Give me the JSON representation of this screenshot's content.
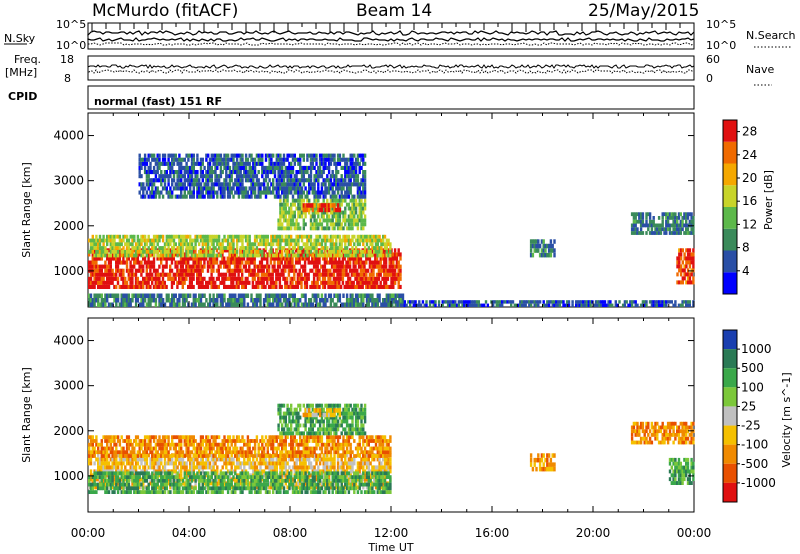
{
  "header": {
    "station": "McMurdo (fitACF)",
    "beam": "Beam 14",
    "date": "25/May/2015"
  },
  "top_panels": {
    "nsky_label": "N.Sky",
    "nsearch_label": "N.Search",
    "nsky_ticks": [
      "10^5",
      "10^0"
    ],
    "nsearch_ticks": [
      "10^5",
      "10^0"
    ],
    "freq_label": "Freq.",
    "freq_unit": "[MHz]",
    "freq_ticks": [
      "18",
      "8"
    ],
    "nave_label": "Nave",
    "nave_ticks": [
      "60",
      "0"
    ],
    "cpid_label": "CPID",
    "cpid_text": "normal (fast) 151 RF"
  },
  "chart_data": [
    {
      "type": "heatmap",
      "title": "",
      "xlabel": "Time UT",
      "ylabel": "Slant Range [km]",
      "x_tick_labels": [
        "00:00",
        "04:00",
        "08:00",
        "12:00",
        "16:00",
        "20:00",
        "00:00"
      ],
      "x_range_hours": [
        0,
        24
      ],
      "y_tick_labels": [
        "1000",
        "2000",
        "3000",
        "4000"
      ],
      "ylim": [
        200,
        4500
      ],
      "colorbar": {
        "label": "Power [dB]",
        "tick_labels": [
          "4",
          "8",
          "12",
          "16",
          "20",
          "24",
          "28"
        ],
        "range": [
          0,
          30
        ],
        "colors": [
          "#0000ff",
          "#2a4fa6",
          "#3a8a5a",
          "#5cb84a",
          "#c8d42a",
          "#f5a800",
          "#f06a00",
          "#e01010"
        ]
      },
      "scatter_regions": [
        {
          "t0": 0.0,
          "t1": 12.4,
          "r0": 600,
          "r1": 1500,
          "value": 28
        },
        {
          "t0": 0.0,
          "t1": 12.0,
          "r0": 1300,
          "r1": 1800,
          "value": 16
        },
        {
          "t0": 0.0,
          "t1": 12.5,
          "r0": 200,
          "r1": 500,
          "value": 8
        },
        {
          "t0": 7.5,
          "t1": 11.0,
          "r0": 1900,
          "r1": 2600,
          "value": 14
        },
        {
          "t0": 8.5,
          "t1": 10.0,
          "r0": 2300,
          "r1": 2500,
          "value": 26
        },
        {
          "t0": 2.0,
          "t1": 11.0,
          "r0": 2600,
          "r1": 3600,
          "value": 6
        },
        {
          "t0": 17.5,
          "t1": 18.5,
          "r0": 1300,
          "r1": 1700,
          "value": 8
        },
        {
          "t0": 21.5,
          "t1": 24.0,
          "r0": 1800,
          "r1": 2300,
          "value": 8
        },
        {
          "t0": 23.3,
          "t1": 24.0,
          "r0": 700,
          "r1": 1500,
          "value": 26
        },
        {
          "t0": 12.0,
          "t1": 24.0,
          "r0": 200,
          "r1": 350,
          "value": 6
        }
      ]
    },
    {
      "type": "heatmap",
      "title": "",
      "xlabel": "Time UT",
      "ylabel": "Slant Range [km]",
      "x_tick_labels": [
        "00:00",
        "04:00",
        "08:00",
        "12:00",
        "16:00",
        "20:00",
        "00:00"
      ],
      "x_range_hours": [
        0,
        24
      ],
      "y_tick_labels": [
        "1000",
        "2000",
        "3000",
        "4000"
      ],
      "ylim": [
        200,
        4500
      ],
      "colorbar": {
        "label": "Velocity [m s^-1]",
        "tick_labels": [
          "1000",
          "500",
          "100",
          "25",
          "-25",
          "-100",
          "-500",
          "-1000"
        ],
        "colors": [
          "#1a3fb0",
          "#2a7a55",
          "#3aa84a",
          "#7cc83a",
          "#c0c0c0",
          "#f5c000",
          "#f08a00",
          "#e85000",
          "#e01010"
        ]
      },
      "scatter_regions": [
        {
          "t0": 0.0,
          "t1": 12.0,
          "r0": 700,
          "r1": 1500,
          "value": -100
        },
        {
          "t0": 0.0,
          "t1": 12.0,
          "r0": 1400,
          "r1": 1900,
          "value": -500
        },
        {
          "t0": 0.0,
          "t1": 12.0,
          "r0": 600,
          "r1": 1100,
          "value": 100
        },
        {
          "t0": 7.5,
          "t1": 11.0,
          "r0": 1900,
          "r1": 2600,
          "value": 100
        },
        {
          "t0": 8.5,
          "t1": 10.0,
          "r0": 2300,
          "r1": 2500,
          "value": -100
        },
        {
          "t0": 17.5,
          "t1": 18.5,
          "r0": 1100,
          "r1": 1500,
          "value": -500
        },
        {
          "t0": 21.5,
          "t1": 24.0,
          "r0": 1700,
          "r1": 2200,
          "value": -500
        },
        {
          "t0": 23.0,
          "t1": 24.0,
          "r0": 800,
          "r1": 1400,
          "value": 100
        }
      ]
    }
  ]
}
